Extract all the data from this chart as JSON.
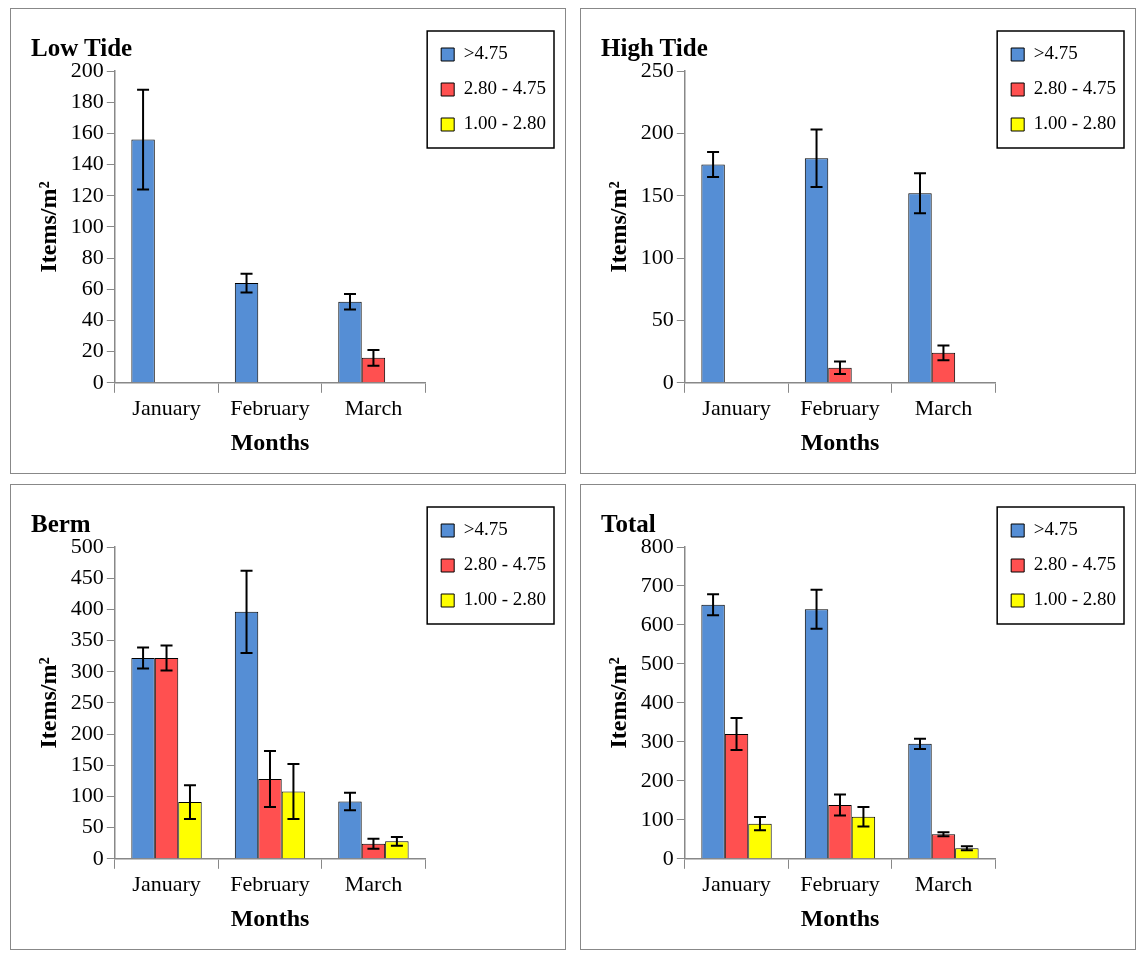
{
  "chart_data": [
    {
      "type": "bar",
      "title": "Low Tide",
      "xlabel": "Months",
      "ylabel": "Items/m²",
      "categories": [
        "January",
        "February",
        "March"
      ],
      "ylim": [
        0,
        200
      ],
      "yticks": [
        0,
        20,
        40,
        60,
        80,
        100,
        120,
        140,
        160,
        180,
        200
      ],
      "grid": false,
      "legend": "top right",
      "series": [
        {
          "name": ">4.75",
          "color": "#558ed5",
          "values": [
            156,
            64,
            52
          ],
          "errors": [
            32,
            6,
            5
          ]
        },
        {
          "name": "2.80 - 4.75",
          "color": "#ff5050",
          "values": [
            0,
            0,
            16
          ],
          "errors": [
            null,
            null,
            5
          ]
        },
        {
          "name": "1.00 - 2.80",
          "color": "#ffff00",
          "values": [
            0,
            0,
            0
          ],
          "errors": [
            null,
            null,
            null
          ]
        }
      ]
    },
    {
      "type": "bar",
      "title": "High Tide",
      "xlabel": "Months",
      "ylabel": "Items/m²",
      "categories": [
        "January",
        "February",
        "March"
      ],
      "ylim": [
        0,
        250
      ],
      "yticks": [
        0,
        50,
        100,
        150,
        200,
        250
      ],
      "grid": false,
      "legend": "top right",
      "series": [
        {
          "name": ">4.75",
          "color": "#558ed5",
          "values": [
            175,
            180,
            152
          ],
          "errors": [
            10,
            23,
            16
          ]
        },
        {
          "name": "2.80 - 4.75",
          "color": "#ff5050",
          "values": [
            0,
            12,
            24
          ],
          "errors": [
            null,
            5,
            6
          ]
        },
        {
          "name": "1.00 - 2.80",
          "color": "#ffff00",
          "values": [
            0,
            0,
            0
          ],
          "errors": [
            null,
            null,
            null
          ]
        }
      ]
    },
    {
      "type": "bar",
      "title": "Berm",
      "xlabel": "Months",
      "ylabel": "Items/m²",
      "categories": [
        "January",
        "February",
        "March"
      ],
      "ylim": [
        0,
        500
      ],
      "yticks": [
        0,
        50,
        100,
        150,
        200,
        250,
        300,
        350,
        400,
        450,
        500
      ],
      "grid": false,
      "legend": "top right",
      "series": [
        {
          "name": ">4.75",
          "color": "#558ed5",
          "values": [
            322,
            396,
            92
          ],
          "errors": [
            17,
            66,
            14
          ]
        },
        {
          "name": "2.80 - 4.75",
          "color": "#ff5050",
          "values": [
            322,
            128,
            24
          ],
          "errors": [
            20,
            45,
            8
          ]
        },
        {
          "name": "1.00 - 2.80",
          "color": "#ffff00",
          "values": [
            91,
            108,
            28
          ],
          "errors": [
            27,
            44,
            7
          ]
        }
      ]
    },
    {
      "type": "bar",
      "title": "Total",
      "xlabel": "Months",
      "ylabel": "Items/m²",
      "categories": [
        "January",
        "February",
        "March"
      ],
      "ylim": [
        0,
        800
      ],
      "yticks": [
        0,
        100,
        200,
        300,
        400,
        500,
        600,
        700,
        800
      ],
      "grid": false,
      "legend": "top right",
      "series": [
        {
          "name": ">4.75",
          "color": "#558ed5",
          "values": [
            652,
            640,
            295
          ],
          "errors": [
            27,
            50,
            13
          ]
        },
        {
          "name": "2.80 - 4.75",
          "color": "#ff5050",
          "values": [
            320,
            138,
            63
          ],
          "errors": [
            41,
            27,
            5
          ]
        },
        {
          "name": "1.00 - 2.80",
          "color": "#ffff00",
          "values": [
            90,
            108,
            27
          ],
          "errors": [
            17,
            25,
            5
          ]
        }
      ]
    }
  ]
}
